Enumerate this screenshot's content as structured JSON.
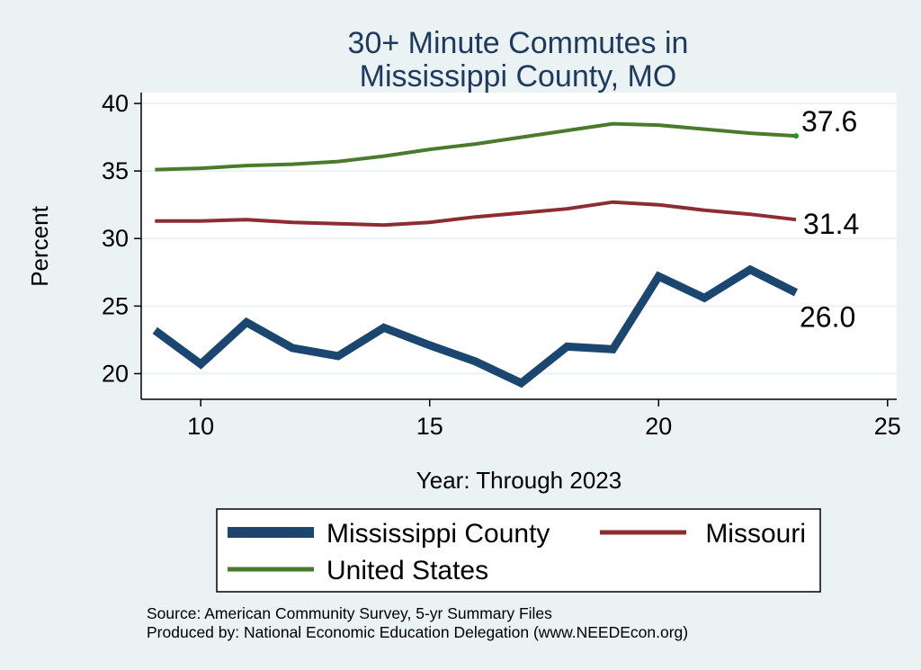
{
  "chart_data": {
    "type": "line",
    "title_lines": [
      "30+ Minute Commutes in",
      "Mississippi County, MO"
    ],
    "xlabel": "Year: Through 2023",
    "ylabel": "Percent",
    "xlim": [
      8.7,
      25.2
    ],
    "ylim": [
      18.1,
      40.8
    ],
    "xticks": [
      10,
      15,
      20,
      25
    ],
    "yticks": [
      20,
      25,
      30,
      35,
      40
    ],
    "grid": true,
    "legend_position": "bottom",
    "series": [
      {
        "name": "Mississippi County",
        "color": "#1a4670",
        "width": 9,
        "x": [
          9,
          10,
          11,
          12,
          13,
          14,
          15,
          16,
          17,
          18,
          19,
          20,
          21,
          22,
          23
        ],
        "y": [
          23.2,
          20.7,
          23.8,
          21.9,
          21.3,
          23.4,
          22.1,
          20.9,
          19.3,
          22.0,
          21.8,
          27.2,
          25.6,
          27.7,
          26.0
        ],
        "end_label": "26.0"
      },
      {
        "name": "Missouri",
        "color": "#8c2d32",
        "width": 4,
        "x": [
          9,
          10,
          11,
          12,
          13,
          14,
          15,
          16,
          17,
          18,
          19,
          20,
          21,
          22,
          23
        ],
        "y": [
          31.3,
          31.3,
          31.4,
          31.2,
          31.1,
          31.0,
          31.2,
          31.6,
          31.9,
          32.2,
          32.7,
          32.5,
          32.1,
          31.8,
          31.4
        ],
        "end_label": "31.4"
      },
      {
        "name": "United States",
        "color": "#4a7a2c",
        "width": 4,
        "x": [
          9,
          10,
          11,
          12,
          13,
          14,
          15,
          16,
          17,
          18,
          19,
          20,
          21,
          22,
          23
        ],
        "y": [
          35.1,
          35.2,
          35.4,
          35.5,
          35.7,
          36.1,
          36.6,
          37.0,
          37.5,
          38.0,
          38.5,
          38.4,
          38.1,
          37.8,
          37.6
        ],
        "end_label": "37.6"
      }
    ],
    "notes": [
      "Source: American Community Survey, 5-yr Summary Files",
      "Produced by: National Economic Education Delegation (www.NEEDEcon.org)"
    ]
  }
}
